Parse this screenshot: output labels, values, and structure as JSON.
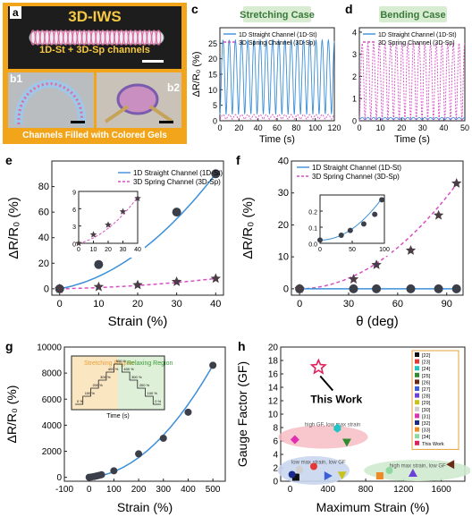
{
  "panel_labels": {
    "a": "a",
    "b1": "b1",
    "b2": "b2",
    "c": "c",
    "d": "d",
    "e": "e",
    "f": "f",
    "g": "g",
    "h": "h"
  },
  "panel_a": {
    "title": "3D-IWS",
    "subtitle": "1D-St + 3D-Sp channels",
    "caption": "Channels Filled with Colored Gels"
  },
  "colors": {
    "blue": "#3b8fd9",
    "pink": "#d64fc4",
    "marker": "#3a3f4a",
    "star": "#4a3d45"
  },
  "chart_data": [
    {
      "id": "c",
      "type": "line",
      "title": "Stretching Case",
      "xlabel": "Time (s)",
      "ylabel": "ΔR/R₀ (%)",
      "xlim": [
        0,
        120
      ],
      "ylim": [
        0,
        30
      ],
      "xticks": [
        "0",
        "20",
        "40",
        "60",
        "80",
        "100",
        "120"
      ],
      "yticks": [
        "0",
        "5",
        "10",
        "15",
        "20",
        "25"
      ],
      "series": [
        {
          "name": "1D Straight Channel (1D-St)",
          "period": 6.5,
          "amplitude": 24,
          "offset": 2
        },
        {
          "name": "3D Spring Channel (3D-Sp)",
          "period": 6.5,
          "amplitude": 1.5,
          "offset": 0.5
        }
      ]
    },
    {
      "id": "d",
      "type": "line",
      "title": "Bending Case",
      "xlabel": "Time (s)",
      "ylabel": "",
      "xlim": [
        0,
        50
      ],
      "ylim": [
        0,
        4.2
      ],
      "xticks": [
        "0",
        "10",
        "20",
        "30",
        "40",
        "50"
      ],
      "yticks": [
        "0",
        "1",
        "2",
        "3",
        "4"
      ],
      "series": [
        {
          "name": "1D Straight Channel (1D-St)",
          "period": 2.7,
          "amplitude": 0.1,
          "offset": 0.05
        },
        {
          "name": "3D Spring Channel (3D-Sp)",
          "period": 2.7,
          "amplitude": 3.5,
          "offset": 0
        }
      ]
    },
    {
      "id": "e",
      "type": "scatter",
      "xlabel": "Strain (%)",
      "ylabel": "ΔR/R₀ (%)",
      "xlim": [
        -2,
        42
      ],
      "ylim": [
        -5,
        100
      ],
      "xticks": [
        "0",
        "10",
        "20",
        "30",
        "40"
      ],
      "yticks": [
        "0",
        "20",
        "40",
        "60",
        "80"
      ],
      "series": [
        {
          "name": "1D Straight Channel (1D-St)",
          "x": [
            0,
            10,
            20,
            30,
            40
          ],
          "y": [
            0,
            19,
            38,
            60,
            90
          ]
        },
        {
          "name": "3D Spring Channel (3D-Sp)",
          "x": [
            0,
            10,
            20,
            30,
            40
          ],
          "y": [
            0,
            1.5,
            3,
            5.5,
            8
          ]
        }
      ],
      "inset": {
        "xlim": [
          0,
          40
        ],
        "ylim": [
          0,
          9
        ],
        "xticks": [
          "0",
          "10",
          "20",
          "30",
          "40"
        ],
        "yticks": [
          "0",
          "3",
          "6",
          "9"
        ],
        "x": [
          0,
          10,
          20,
          30,
          40
        ],
        "y": [
          0,
          1.5,
          3.2,
          5.5,
          7.8
        ]
      }
    },
    {
      "id": "f",
      "type": "scatter",
      "xlabel": "θ (deg)",
      "ylabel": "ΔR/R₀ (%)",
      "xlim": [
        -5,
        100
      ],
      "ylim": [
        -2,
        40
      ],
      "xticks": [
        "0",
        "30",
        "60",
        "90"
      ],
      "yticks": [
        "0",
        "10",
        "20",
        "30",
        "40"
      ],
      "series": [
        {
          "name": "1D Straight Channel (1D-St)",
          "x": [
            0,
            33,
            47,
            68,
            85,
            96
          ],
          "y": [
            0,
            0,
            0,
            0,
            0,
            0
          ]
        },
        {
          "name": "3D Spring Channel (3D-Sp)",
          "x": [
            0,
            33,
            47,
            68,
            85,
            96
          ],
          "y": [
            0,
            3,
            7.5,
            12,
            23,
            33
          ]
        }
      ],
      "inset": {
        "xlim": [
          0,
          100
        ],
        "ylim": [
          0,
          0.3
        ],
        "xticks": [
          "0",
          "50",
          "100"
        ],
        "yticks": [
          "0.0",
          "0.1",
          "0.2"
        ],
        "x": [
          0,
          33,
          47,
          68,
          85,
          96
        ],
        "y": [
          0.02,
          0.05,
          0.08,
          0.12,
          0.18,
          0.27
        ]
      }
    },
    {
      "id": "g",
      "type": "scatter",
      "xlabel": "Strain (%)",
      "ylabel": "ΔR/R₀ (%)",
      "xlim": [
        -100,
        550
      ],
      "ylim": [
        -300,
        10000
      ],
      "xticks": [
        "-100",
        "0",
        "100",
        "200",
        "300",
        "400",
        "500"
      ],
      "yticks": [
        "0",
        "2000",
        "4000",
        "6000",
        "8000",
        "10000"
      ],
      "series": [
        {
          "name": "",
          "x": [
            0,
            10,
            20,
            30,
            40,
            50,
            100,
            200,
            300,
            400,
            500
          ],
          "y": [
            0,
            30,
            60,
            100,
            150,
            200,
            500,
            1800,
            3000,
            5000,
            8600
          ]
        }
      ],
      "inset": {
        "xlabel": "Time (s)",
        "left_label": "Stretching Region",
        "right_label": "Relaxing Region",
        "steps": [
          "0 %",
          "100 %",
          "200 %",
          "300 %",
          "400 %",
          "500 %",
          "400 %",
          "300 %",
          "200 %",
          "100 %",
          "0 %"
        ]
      }
    },
    {
      "id": "h",
      "type": "scatter",
      "xlabel": "Maximum Strain (%)",
      "ylabel": "Gauge Factor (GF)",
      "xlim": [
        -100,
        1850
      ],
      "ylim": [
        0,
        20
      ],
      "xticks": [
        "0",
        "400",
        "800",
        "1200",
        "1600"
      ],
      "yticks": [
        "0",
        "2",
        "4",
        "6",
        "8",
        "10",
        "12",
        "14",
        "16",
        "18",
        "20"
      ],
      "annotation": "This Work",
      "regions": [
        "high GF,\nlow max strain",
        "low max strain,\nlow GF",
        "high max strain,\nlow GF"
      ],
      "points": [
        {
          "ref": "[22]",
          "x": 60,
          "y": 0.6,
          "color": "#111111",
          "shape": "square"
        },
        {
          "ref": "[23]",
          "x": 250,
          "y": 2.2,
          "color": "#e53935",
          "shape": "circle"
        },
        {
          "ref": "[24]",
          "x": 500,
          "y": 7.9,
          "color": "#20c4c4",
          "shape": "pentagon"
        },
        {
          "ref": "[25]",
          "x": 600,
          "y": 5.8,
          "color": "#2e8b2e",
          "shape": "tri-down"
        },
        {
          "ref": "[26]",
          "x": 1700,
          "y": 2.5,
          "color": "#6b2a16",
          "shape": "tri-left"
        },
        {
          "ref": "[27]",
          "x": 400,
          "y": 0.8,
          "color": "#3a5fd9",
          "shape": "tri-right"
        },
        {
          "ref": "[28]",
          "x": 1300,
          "y": 1.2,
          "color": "#6b3fd9",
          "shape": "tri-up"
        },
        {
          "ref": "[29]",
          "x": 550,
          "y": 0.9,
          "color": "#c9c21a",
          "shape": "tri-down"
        },
        {
          "ref": "[30]",
          "x": 100,
          "y": 1.7,
          "color": "#cfcfcf",
          "shape": "hexagon"
        },
        {
          "ref": "[31]",
          "x": 50,
          "y": 6.2,
          "color": "#e02fb0",
          "shape": "diamond"
        },
        {
          "ref": "[32]",
          "x": 20,
          "y": 1.0,
          "color": "#1a2a8a",
          "shape": "circle"
        },
        {
          "ref": "[33]",
          "x": 950,
          "y": 0.8,
          "color": "#f08a24",
          "shape": "square"
        },
        {
          "ref": "[34]",
          "x": 1050,
          "y": 1.6,
          "color": "#8fd9a0",
          "shape": "circle"
        },
        {
          "ref": "This Work",
          "x": 300,
          "y": 17,
          "color": "#e0205a",
          "shape": "star"
        }
      ]
    }
  ]
}
